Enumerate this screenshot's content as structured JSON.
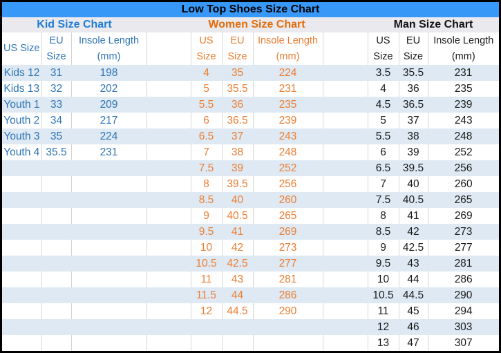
{
  "title": "Low Top Shoes Size Chart",
  "colors": {
    "title_bar_bg": "#3898F8",
    "section_header_bg": "#EAE9EE",
    "banded_row_bg": "#DEE9F3",
    "cell_border": "#D4D4D4",
    "outer_border": "#000000",
    "kid_section_title": "#1F7CD6",
    "kid_text": "#2E75B6",
    "women_section_title": "#E36C0A",
    "women_text": "#ED7D31",
    "man_text": "#1A1A1A"
  },
  "chart_data": [
    {
      "type": "table",
      "id": "kid",
      "title": "Kid Size Chart",
      "columns": [
        "US Size",
        "EU Size",
        "Insole Length (mm)"
      ],
      "column_lines": [
        [
          "US Size"
        ],
        [
          "EU",
          "Size"
        ],
        [
          "Insole Length",
          "(mm)"
        ]
      ],
      "rows": [
        [
          "Kids 12",
          "31",
          "198"
        ],
        [
          "Kids 13",
          "32",
          "202"
        ],
        [
          "Youth 1",
          "33",
          "209"
        ],
        [
          "Youth 2",
          "34",
          "217"
        ],
        [
          "Youth 3",
          "35",
          "224"
        ],
        [
          "Youth 4",
          "35.5",
          "231"
        ]
      ]
    },
    {
      "type": "table",
      "id": "women",
      "title": "Women Size Chart",
      "columns": [
        "US Size",
        "EU Size",
        "Insole Length (mm)"
      ],
      "column_lines": [
        [
          "US",
          "Size"
        ],
        [
          "EU",
          "Size"
        ],
        [
          "Insole Length",
          "(mm)"
        ]
      ],
      "rows": [
        [
          "4",
          "35",
          "224"
        ],
        [
          "5",
          "35.5",
          "231"
        ],
        [
          "5.5",
          "36",
          "235"
        ],
        [
          "6",
          "36.5",
          "239"
        ],
        [
          "6.5",
          "37",
          "243"
        ],
        [
          "7",
          "38",
          "248"
        ],
        [
          "7.5",
          "39",
          "252"
        ],
        [
          "8",
          "39.5",
          "256"
        ],
        [
          "8.5",
          "40",
          "260"
        ],
        [
          "9",
          "40.5",
          "265"
        ],
        [
          "9.5",
          "41",
          "269"
        ],
        [
          "10",
          "42",
          "273"
        ],
        [
          "10.5",
          "42.5",
          "277"
        ],
        [
          "11",
          "43",
          "281"
        ],
        [
          "11.5",
          "44",
          "286"
        ],
        [
          "12",
          "44.5",
          "290"
        ]
      ]
    },
    {
      "type": "table",
      "id": "man",
      "title": "Man Size Chart",
      "columns": [
        "US Size",
        "EU Size",
        "Insole Length (mm)"
      ],
      "column_lines": [
        [
          "US",
          "Size"
        ],
        [
          "EU",
          "Size"
        ],
        [
          "Insole Length",
          "(mm)"
        ]
      ],
      "rows": [
        [
          "3.5",
          "35.5",
          "231"
        ],
        [
          "4",
          "36",
          "235"
        ],
        [
          "4.5",
          "36.5",
          "239"
        ],
        [
          "5",
          "37",
          "243"
        ],
        [
          "5.5",
          "38",
          "248"
        ],
        [
          "6",
          "39",
          "252"
        ],
        [
          "6.5",
          "39.5",
          "256"
        ],
        [
          "7",
          "40",
          "260"
        ],
        [
          "7.5",
          "40.5",
          "265"
        ],
        [
          "8",
          "41",
          "269"
        ],
        [
          "8.5",
          "42",
          "273"
        ],
        [
          "9",
          "42.5",
          "277"
        ],
        [
          "9.5",
          "43",
          "281"
        ],
        [
          "10",
          "44",
          "286"
        ],
        [
          "10.5",
          "44.5",
          "290"
        ],
        [
          "11",
          "45",
          "294"
        ],
        [
          "12",
          "46",
          "303"
        ],
        [
          "13",
          "47",
          "307"
        ]
      ]
    }
  ]
}
